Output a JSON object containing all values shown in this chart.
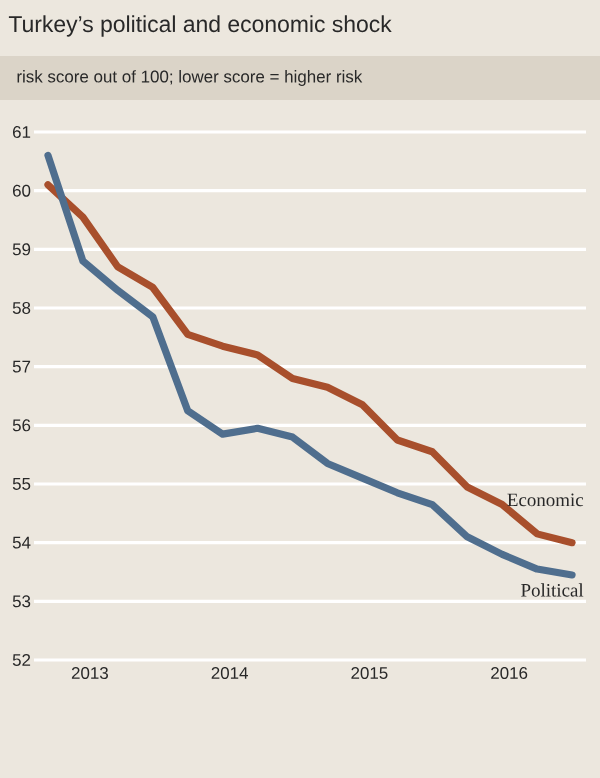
{
  "chart_data": {
    "type": "line",
    "title": "Turkey’s political and economic shock",
    "subtitle": "risk score out of 100; lower score = higher risk",
    "x": [
      2012.7,
      2012.95,
      2013.2,
      2013.45,
      2013.7,
      2013.95,
      2014.2,
      2014.45,
      2014.7,
      2014.95,
      2015.2,
      2015.45,
      2015.7,
      2015.95,
      2016.2,
      2016.45
    ],
    "series": [
      {
        "name": "Economic",
        "color": "#a84f2c",
        "values": [
          60.1,
          59.55,
          58.7,
          58.35,
          57.55,
          57.35,
          57.2,
          56.8,
          56.65,
          56.35,
          55.75,
          55.55,
          54.95,
          54.65,
          54.15,
          54.0
        ]
      },
      {
        "name": "Political",
        "color": "#4f6e8e",
        "values": [
          60.6,
          58.8,
          58.3,
          57.85,
          56.25,
          55.85,
          55.95,
          55.8,
          55.35,
          55.1,
          54.85,
          54.65,
          54.1,
          53.8,
          53.55,
          53.45
        ]
      }
    ],
    "xlim": [
      2012.6,
      2016.55
    ],
    "ylim": [
      52,
      61
    ],
    "xticks": [
      2013,
      2014,
      2015,
      2016
    ],
    "yticks": [
      52,
      53,
      54,
      55,
      56,
      57,
      58,
      59,
      60,
      61
    ],
    "grid": "y",
    "line_style": "solid"
  }
}
